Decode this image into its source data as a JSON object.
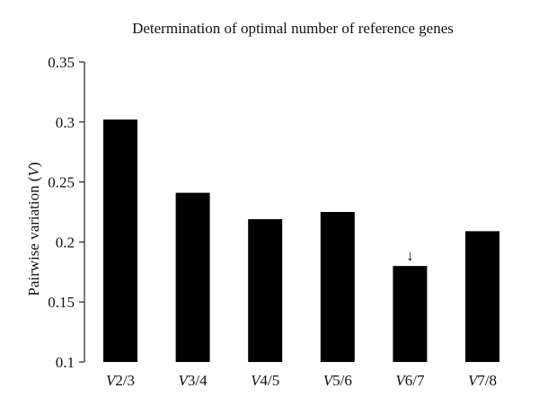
{
  "chart_data": {
    "type": "bar",
    "title": "Determination of optimal number of reference genes",
    "ylabel": "Pairwise variation",
    "ylabel_italic_part": "V",
    "categories": [
      {
        "prefix": "V",
        "suffix": "2/3"
      },
      {
        "prefix": "V",
        "suffix": "3/4"
      },
      {
        "prefix": "V",
        "suffix": "4/5"
      },
      {
        "prefix": "V",
        "suffix": "5/6"
      },
      {
        "prefix": "V",
        "suffix": "6/7"
      },
      {
        "prefix": "V",
        "suffix": "7/8"
      }
    ],
    "values": [
      0.302,
      0.241,
      0.219,
      0.225,
      0.18,
      0.209
    ],
    "ylim": [
      0.1,
      0.35
    ],
    "yticks": [
      "0.1",
      "0.15",
      "0.2",
      "0.25",
      "0.3",
      "0.35"
    ],
    "highlight_index": 4,
    "highlight_marker": "↓",
    "grid": false,
    "bar_color": "#000000"
  }
}
